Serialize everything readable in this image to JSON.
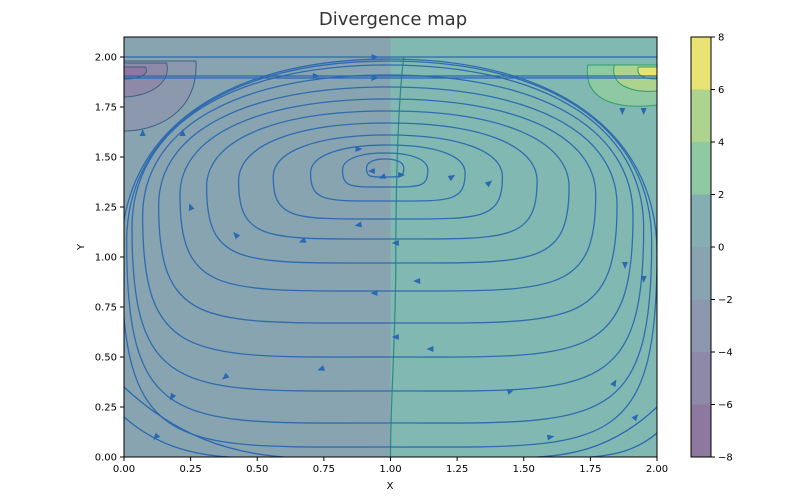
{
  "chart_data": {
    "type": "heatmap",
    "title": "Divergence map",
    "xlabel": "X",
    "ylabel": "Y",
    "xlim": [
      0,
      2
    ],
    "ylim": [
      0,
      2.1
    ],
    "x_ticks": [
      "0.00",
      "0.25",
      "0.50",
      "0.75",
      "1.00",
      "1.25",
      "1.50",
      "1.75",
      "2.00"
    ],
    "y_ticks": [
      "0.00",
      "0.25",
      "0.50",
      "0.75",
      "1.00",
      "1.25",
      "1.50",
      "1.75",
      "2.00"
    ],
    "colorbar": {
      "ticks": [
        "−8",
        "−6",
        "−4",
        "−2",
        "0",
        "2",
        "4",
        "6",
        "8"
      ],
      "levels": [
        -8,
        -7,
        -6,
        -5,
        -4,
        -3,
        -2,
        -1,
        0,
        1,
        2,
        3,
        4,
        5,
        6,
        7,
        8
      ],
      "colors": [
        "#8e78a0",
        "#8d89a7",
        "#8b98ad",
        "#87a4b0",
        "#84aeb2",
        "#82b8b2",
        "#8ec9a4",
        "#aed38e",
        "#e9e373"
      ]
    },
    "field": {
      "description_of_values": "divergence is negative on the left half (x<1) and positive on the right half (x>1); extreme values near top corners",
      "negative_region_level": -1,
      "positive_region_level": 1,
      "top_left_extreme_min": -8,
      "top_right_extreme_max": 8
    },
    "streamlines": {
      "color": "#2a68b0",
      "vortex_center": [
        0.98,
        1.45
      ],
      "flow": "clockwise recirculating cavity flow, lid moving right at y=2"
    },
    "grid": false
  }
}
